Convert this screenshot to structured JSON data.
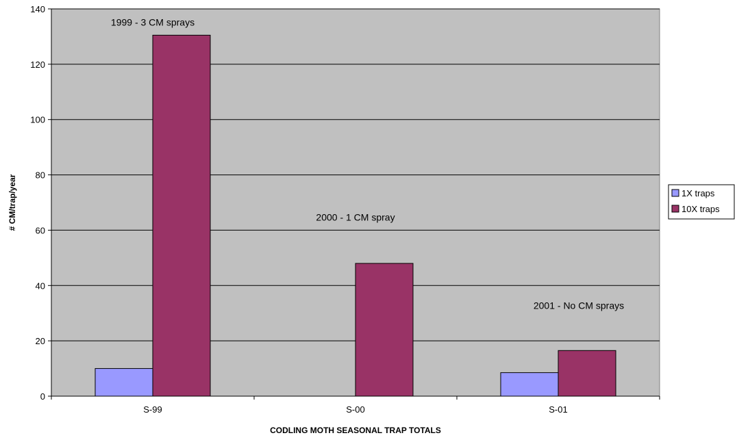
{
  "chart_data": {
    "type": "bar",
    "categories": [
      "S-99",
      "S-00",
      "S-01"
    ],
    "series": [
      {
        "name": "1X traps",
        "values": [
          10,
          0,
          8.5
        ],
        "color": "#9999ff"
      },
      {
        "name": "10X traps",
        "values": [
          130.5,
          48,
          16.5
        ],
        "color": "#993366"
      }
    ],
    "xlabel": "CODLING MOTH SEASONAL TRAP TOTALS",
    "ylabel": "# CM/trap/year",
    "ylim": [
      0,
      140
    ],
    "yticks": [
      0,
      20,
      40,
      60,
      80,
      100,
      120,
      140
    ],
    "grid": true,
    "legend_position": "right",
    "plot_background": "#c0c0c0",
    "annotations": [
      {
        "text": "1999 - 3 CM sprays",
        "category": "S-99"
      },
      {
        "text": "2000 - 1 CM spray",
        "category": "S-00"
      },
      {
        "text": "2001 - No CM sprays",
        "category": "S-01"
      }
    ]
  }
}
